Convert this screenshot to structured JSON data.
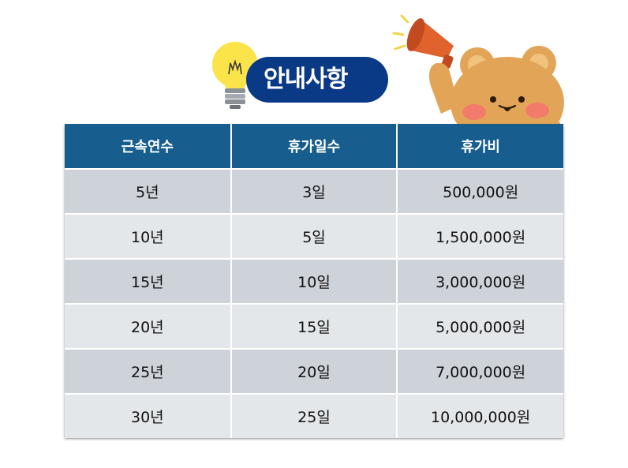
{
  "notice": {
    "title": "안내사항"
  },
  "table": {
    "headers": [
      "근속연수",
      "휴가일수",
      "휴가비"
    ],
    "rows": [
      [
        "5년",
        "3일",
        "500,000원"
      ],
      [
        "10년",
        "5일",
        "1,500,000원"
      ],
      [
        "15년",
        "10일",
        "3,000,000원"
      ],
      [
        "20년",
        "15일",
        "5,000,000원"
      ],
      [
        "25년",
        "20일",
        "7,000,000원"
      ],
      [
        "30년",
        "25일",
        "10,000,000원"
      ]
    ]
  },
  "icons": [
    "light-bulb-icon",
    "megaphone-icon",
    "bear-mascot-icon"
  ],
  "colors": {
    "header": "#175e8e",
    "title_pill": "#0a3a86",
    "row_dark": "#ced3da",
    "row_light": "#e4e7ea"
  }
}
